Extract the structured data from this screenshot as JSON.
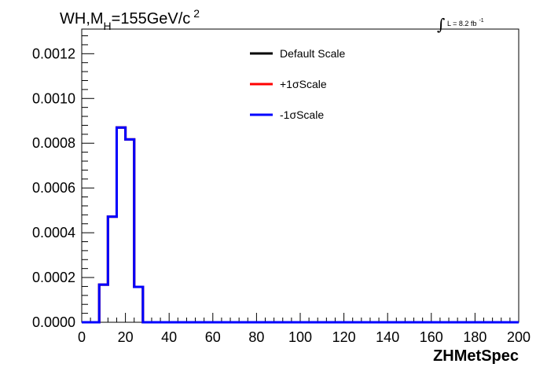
{
  "chart_data": {
    "type": "step",
    "title": {
      "prefix": "WH,M",
      "subscript": "H",
      "value": "=155GeV/c",
      "superscript": "2"
    },
    "lumi": {
      "integral": "∫",
      "text": "L = 8.2 fb",
      "superscript": "-1"
    },
    "xlabel": "ZHMetSpec",
    "ylabel": "",
    "xlim": [
      0,
      200
    ],
    "ylim": [
      0,
      0.00131
    ],
    "x_ticks": [
      "0",
      "20",
      "40",
      "60",
      "80",
      "100",
      "120",
      "140",
      "160",
      "180",
      "200"
    ],
    "y_ticks": [
      "0.0000",
      "0.0002",
      "0.0004",
      "0.0006",
      "0.0008",
      "0.0010",
      "0.0012"
    ],
    "bin_width": 4,
    "bin_edges_start": 0,
    "grid": false,
    "legend_position": "top-center",
    "series": [
      {
        "name": "Default Scale",
        "color": "#000000",
        "values": [
          0,
          0,
          0.000168,
          0.000472,
          0.00087,
          0.000817,
          0.000158,
          0,
          0,
          0,
          0,
          0,
          0,
          0,
          0,
          0,
          0,
          0,
          0,
          0,
          0,
          0,
          0,
          0,
          0,
          0,
          0,
          0,
          0,
          0,
          0,
          0,
          0,
          0,
          0,
          0,
          0,
          0,
          0,
          0,
          0,
          0,
          0,
          0,
          0,
          0,
          0,
          0,
          0,
          0
        ]
      },
      {
        "name": "+1σScale",
        "color": "#ff0000",
        "values": [
          0,
          0,
          0.000168,
          0.000472,
          0.00087,
          0.000817,
          0.000158,
          0,
          0,
          0,
          0,
          0,
          0,
          0,
          0,
          0,
          0,
          0,
          0,
          0,
          0,
          0,
          0,
          0,
          0,
          0,
          0,
          0,
          0,
          0,
          0,
          0,
          0,
          0,
          0,
          0,
          0,
          0,
          0,
          0,
          0,
          0,
          0,
          0,
          0,
          0,
          0,
          0,
          0,
          0
        ]
      },
      {
        "name": "-1σScale",
        "color": "#0000ff",
        "values": [
          0,
          0,
          0.000168,
          0.000472,
          0.00087,
          0.000817,
          0.000158,
          0,
          0,
          0,
          0,
          0,
          0,
          0,
          0,
          0,
          0,
          0,
          0,
          0,
          0,
          0,
          0,
          0,
          0,
          0,
          0,
          0,
          0,
          0,
          0,
          0,
          0,
          0,
          0,
          0,
          0,
          0,
          0,
          0,
          0,
          0,
          0,
          0,
          0,
          0,
          0,
          0,
          0,
          0
        ]
      }
    ]
  }
}
